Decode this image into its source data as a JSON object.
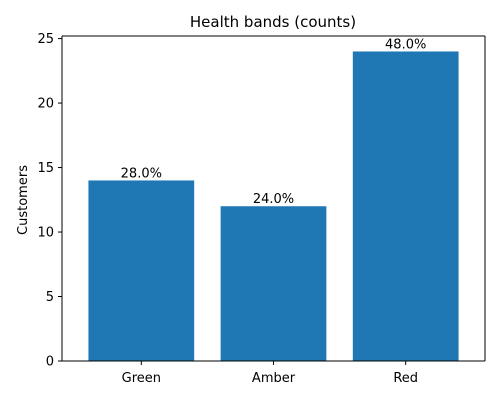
{
  "chart_data": {
    "type": "bar",
    "title": "Health bands (counts)",
    "xlabel": "",
    "ylabel": "Customers",
    "categories": [
      "Green",
      "Amber",
      "Red"
    ],
    "values": [
      14,
      12,
      24
    ],
    "data_labels": [
      "28.0%",
      "24.0%",
      "48.0%"
    ],
    "ylim": [
      0,
      25.2
    ],
    "yticks": [
      0,
      5,
      10,
      15,
      20,
      25
    ],
    "bar_color": "#1f77b4",
    "grid": false,
    "legend": "none"
  }
}
